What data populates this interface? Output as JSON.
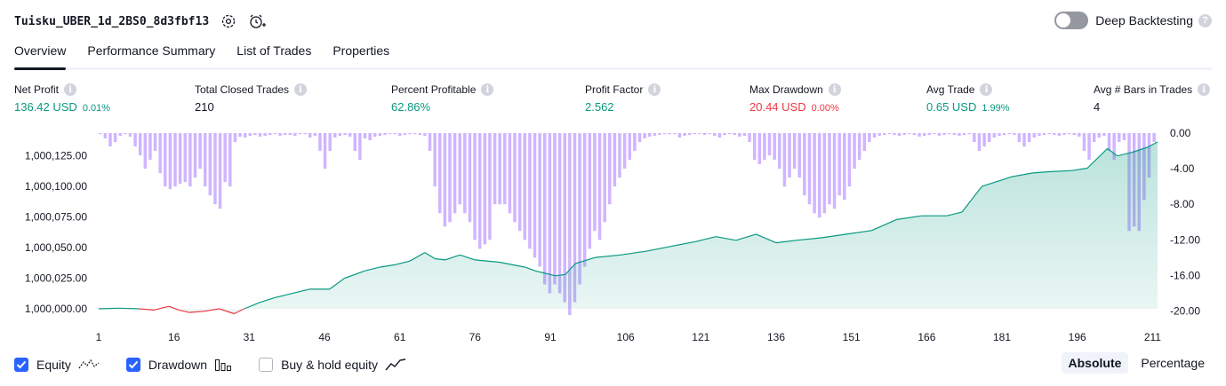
{
  "header": {
    "title": "Tuisku_UBER_1d_2BS0_8d3fbf13",
    "settings_icon": "gear-icon",
    "add_alert_icon": "alarm-plus-icon",
    "deep_backtesting_label": "Deep Backtesting",
    "deep_backtesting_on": false,
    "help_icon": "question-icon",
    "help_glyph": "?"
  },
  "tabs": [
    {
      "label": "Overview",
      "active": true
    },
    {
      "label": "Performance Summary",
      "active": false
    },
    {
      "label": "List of Trades",
      "active": false
    },
    {
      "label": "Properties",
      "active": false
    }
  ],
  "stats": [
    {
      "label": "Net Profit",
      "value": "136.42 USD",
      "pct": "0.01%",
      "color": "#089981"
    },
    {
      "label": "Total Closed Trades",
      "value": "210",
      "pct": "",
      "color": "#131722"
    },
    {
      "label": "Percent Profitable",
      "value": "62.86%",
      "pct": "",
      "color": "#089981"
    },
    {
      "label": "Profit Factor",
      "value": "2.562",
      "pct": "",
      "color": "#089981"
    },
    {
      "label": "Max Drawdown",
      "value": "20.44 USD",
      "pct": "0.00%",
      "color": "#f23645"
    },
    {
      "label": "Avg Trade",
      "value": "0.65 USD",
      "pct": "1.99%",
      "color": "#089981"
    },
    {
      "label": "Avg # Bars in Trades",
      "value": "4",
      "pct": "",
      "color": "#131722"
    }
  ],
  "info_glyph": "i",
  "chart_data": {
    "type": "area",
    "x_ticks": [
      "1",
      "16",
      "31",
      "46",
      "61",
      "76",
      "91",
      "106",
      "121",
      "136",
      "151",
      "166",
      "181",
      "196",
      "211"
    ],
    "x_tick_values": [
      1,
      16,
      31,
      46,
      61,
      76,
      91,
      106,
      121,
      136,
      151,
      166,
      181,
      196,
      211
    ],
    "left_axis": {
      "ticks": [
        "1,000,000.00",
        "1,000,025.00",
        "1,000,050.00",
        "1,000,075.00",
        "1,000,100.00",
        "1,000,125.00"
      ],
      "ylim": [
        1000000,
        1000140
      ]
    },
    "right_axis": {
      "ticks": [
        "0.00",
        "-4.00",
        "-8.00",
        "-12.00",
        "-16.00",
        "-20.00"
      ],
      "ylim": [
        -20.44,
        0
      ]
    },
    "x_range": [
      1,
      212
    ],
    "colors": {
      "equity_up": "#089981",
      "equity_down": "#f23645",
      "area_fill": "#089981",
      "drawdown": "#b388ff"
    },
    "equity": [
      [
        1,
        0
      ],
      [
        5,
        0.5
      ],
      [
        9,
        0
      ],
      [
        12,
        -1
      ],
      [
        15,
        2
      ],
      [
        17,
        -1
      ],
      [
        19,
        -3
      ],
      [
        22,
        -2
      ],
      [
        25,
        0
      ],
      [
        28,
        -4
      ],
      [
        30,
        0
      ],
      [
        33,
        5
      ],
      [
        36,
        9
      ],
      [
        40,
        13
      ],
      [
        43,
        16
      ],
      [
        47,
        16
      ],
      [
        50,
        25
      ],
      [
        54,
        31
      ],
      [
        57,
        34
      ],
      [
        60,
        36
      ],
      [
        63,
        39
      ],
      [
        66,
        46
      ],
      [
        68,
        41
      ],
      [
        70,
        40
      ],
      [
        73,
        44
      ],
      [
        76,
        40
      ],
      [
        81,
        38
      ],
      [
        86,
        34
      ],
      [
        88,
        31
      ],
      [
        90,
        29
      ],
      [
        92,
        27
      ],
      [
        94,
        28
      ],
      [
        96,
        37
      ],
      [
        100,
        42
      ],
      [
        105,
        44
      ],
      [
        110,
        47
      ],
      [
        115,
        51
      ],
      [
        120,
        55
      ],
      [
        124,
        59
      ],
      [
        128,
        56
      ],
      [
        132,
        61
      ],
      [
        136,
        54
      ],
      [
        140,
        56
      ],
      [
        145,
        58
      ],
      [
        150,
        61
      ],
      [
        155,
        64
      ],
      [
        160,
        73
      ],
      [
        165,
        76
      ],
      [
        170,
        76
      ],
      [
        173,
        79
      ],
      [
        177,
        100
      ],
      [
        183,
        108
      ],
      [
        187,
        111
      ],
      [
        190,
        112
      ],
      [
        195,
        113
      ],
      [
        198,
        115
      ],
      [
        202,
        131
      ],
      [
        204,
        125
      ],
      [
        207,
        128
      ],
      [
        210,
        132
      ],
      [
        212,
        136.42
      ]
    ],
    "drawdown": [
      0,
      -0.6,
      -1.5,
      -1.0,
      -0.3,
      0,
      -0.4,
      -1.5,
      -2.5,
      -4.0,
      -3.0,
      -2.0,
      -4.5,
      -6.0,
      -6.3,
      -6.0,
      -5.7,
      -5.5,
      -6.0,
      -5.0,
      -4.0,
      -6.0,
      -7.0,
      -8.0,
      -8.5,
      -5.5,
      -6.0,
      -1.0,
      -0.4,
      -0.5,
      -0.3,
      -0.2,
      -0.4,
      -0.3,
      -0.2,
      -0.1,
      -0.3,
      -0.2,
      -0.2,
      -0.3,
      -0.1,
      -0.1,
      -0.5,
      -0.3,
      -2.0,
      -4.0,
      -2.0,
      -0.5,
      -0.3,
      -0.2,
      -0.4,
      -2.0,
      -3.0,
      -0.6,
      -0.8,
      -0.4,
      -0.3,
      -0.2,
      -0.1,
      -0.1,
      -0.3,
      -0.2,
      -0.1,
      -0.1,
      -0.2,
      -0.3,
      -2.0,
      -6.0,
      -9.0,
      -10.5,
      -10.0,
      -9.0,
      -8.0,
      -9.0,
      -10.0,
      -12.0,
      -13.0,
      -12.5,
      -12.0,
      -8.0,
      -8.0,
      -8.0,
      -9.0,
      -10.0,
      -11.0,
      -12.0,
      -13.0,
      -14.0,
      -15.0,
      -17.0,
      -18.0,
      -17.0,
      -18.0,
      -19.0,
      -20.44,
      -19.0,
      -17.0,
      -15.0,
      -13.0,
      -11.0,
      -12.0,
      -10.0,
      -8.0,
      -6.0,
      -5.0,
      -4.0,
      -3.0,
      -2.0,
      -1.0,
      -0.6,
      -0.4,
      -0.3,
      -0.2,
      -0.1,
      0,
      -0.1,
      -0.5,
      -0.3,
      -0.2,
      -0.1,
      0,
      -0.2,
      -0.1,
      -0.3,
      -0.5,
      -0.2,
      -0.1,
      -0.2,
      -0.4,
      -0.3,
      -1.0,
      -3.0,
      -3.5,
      -3.0,
      -2.5,
      -3.0,
      -4.0,
      -6.0,
      -5.0,
      -4.0,
      -5.0,
      -7.0,
      -8.0,
      -9.0,
      -9.5,
      -9.0,
      -8.0,
      -8.5,
      -7.0,
      -7.5,
      -6.0,
      -4.0,
      -3.0,
      -2.0,
      -1.0,
      -0.5,
      -0.3,
      -0.2,
      -0.1,
      -0.2,
      -0.3,
      -0.2,
      -0.1,
      -0.2,
      -0.4,
      -0.3,
      -0.2,
      -0.1,
      -0.3,
      -0.2,
      -0.1,
      -0.2,
      -0.3,
      -0.2,
      -0.1,
      -1.0,
      -2.0,
      -1.5,
      -1.0,
      -0.5,
      -0.3,
      -0.2,
      -0.1,
      -0.2,
      -1.0,
      -1.5,
      -1.0,
      -0.5,
      -0.3,
      -0.2,
      -0.1,
      -0.2,
      -0.3,
      -0.2,
      -0.1,
      -0.2,
      -0.4,
      -2.0,
      -3.0,
      -1.0,
      -0.5,
      -0.3,
      -2.0,
      -3.0,
      -1.0,
      -0.8,
      -11.0,
      -10.5,
      -11.0,
      -7.5,
      -5.0,
      -1.0
    ]
  },
  "legend": [
    {
      "label": "Equity",
      "checked": true,
      "icon": "equity-line-icon"
    },
    {
      "label": "Drawdown",
      "checked": true,
      "icon": "drawdown-bars-icon"
    },
    {
      "label": "Buy & hold equity",
      "checked": false,
      "icon": "buy-hold-line-icon"
    }
  ],
  "modes": [
    {
      "label": "Absolute",
      "active": true
    },
    {
      "label": "Percentage",
      "active": false
    }
  ]
}
